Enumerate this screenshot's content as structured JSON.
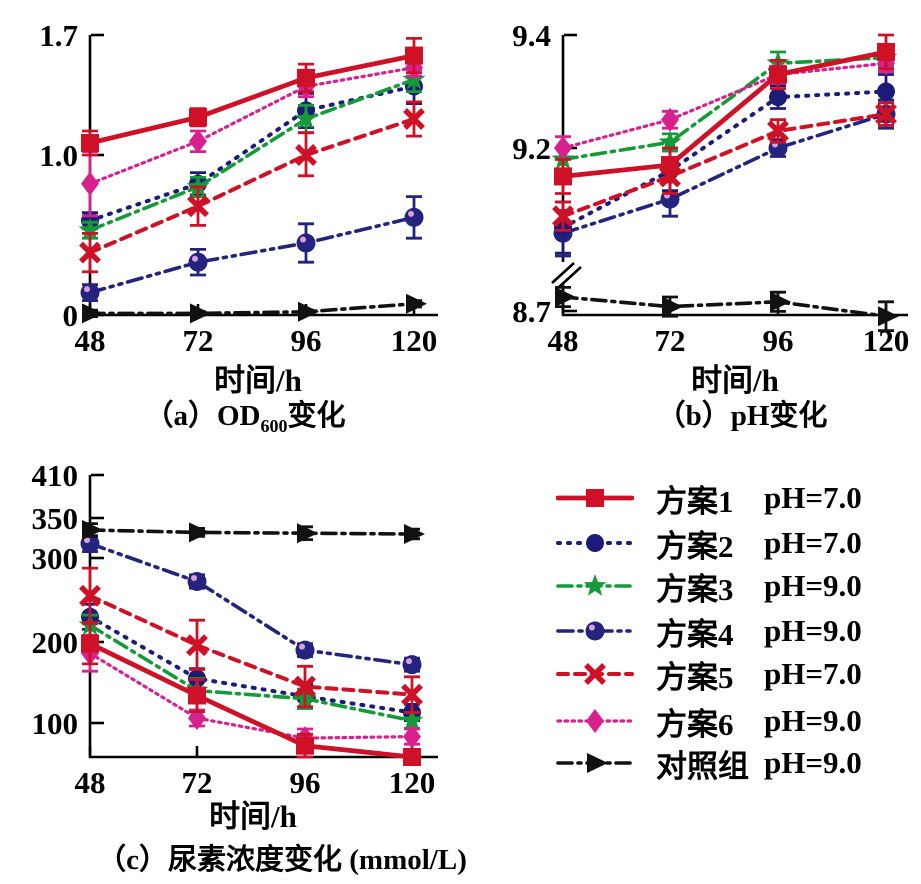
{
  "figure": {
    "captions": {
      "a": {
        "prefix": "（a）OD",
        "sub": "600",
        "suffix": "变化"
      },
      "b": {
        "text": "（b）pH变化"
      },
      "c": {
        "text": "（c）尿素浓度变化 (mmol/L)"
      }
    }
  },
  "legend": {
    "position": "bottom-right",
    "items": [
      {
        "label": "方案1",
        "ph": "pH=7.0",
        "color": "#ce1126",
        "marker": "square",
        "line": "solid"
      },
      {
        "label": "方案2",
        "ph": "pH=7.0",
        "color": "#1c1c78",
        "marker": "circle",
        "line": "dot"
      },
      {
        "label": "方案3",
        "ph": "pH=9.0",
        "color": "#149b38",
        "marker": "star",
        "line": "dashdot"
      },
      {
        "label": "方案4",
        "ph": "pH=9.0",
        "color": "#24247e",
        "marker": "sphere",
        "line": "dashdotdot"
      },
      {
        "label": "方案5",
        "ph": "pH=7.0",
        "color": "#ce1126",
        "marker": "x",
        "line": "dash"
      },
      {
        "label": "方案6",
        "ph": "pH=9.0",
        "color": "#d6218f",
        "marker": "diamond",
        "line": "finedot"
      },
      {
        "label": "对照组",
        "ph": "pH=9.0",
        "color": "#111111",
        "marker": "triangle-right",
        "line": "dashdot"
      }
    ]
  },
  "chart_data": [
    {
      "id": "a",
      "type": "line",
      "title": "（a）OD600变化",
      "xlabel": "时间/h",
      "x": [
        48,
        72,
        96,
        120
      ],
      "xtick_labels": [
        "48",
        "72",
        "96",
        "120"
      ],
      "ylim": [
        0,
        1.7
      ],
      "yticks": [
        {
          "v": 0,
          "label": "0"
        },
        {
          "v": 1.0,
          "label": "1.0"
        },
        {
          "v": 1.7,
          "label": "1.7"
        }
      ],
      "error_bars": true,
      "series": [
        {
          "name": "方案1",
          "values": [
            1.07,
            1.22,
            1.45,
            1.58
          ],
          "err": [
            0.07,
            0.05,
            0.08,
            0.1
          ]
        },
        {
          "name": "方案2",
          "values": [
            0.59,
            0.82,
            1.26,
            1.4
          ],
          "err": [
            0.05,
            0.07,
            0.1,
            0.1
          ]
        },
        {
          "name": "方案3",
          "values": [
            0.53,
            0.8,
            1.21,
            1.44
          ],
          "err": [
            0.05,
            0.06,
            0.08,
            0.07
          ]
        },
        {
          "name": "方案4",
          "values": [
            0.14,
            0.33,
            0.45,
            0.61
          ],
          "err": [
            0.05,
            0.08,
            0.12,
            0.13
          ]
        },
        {
          "name": "方案5",
          "values": [
            0.39,
            0.68,
            1.0,
            1.21
          ],
          "err": [
            0.12,
            0.12,
            0.13,
            0.1
          ]
        },
        {
          "name": "方案6",
          "values": [
            0.82,
            1.08,
            1.4,
            1.51
          ],
          "err": [
            0.2,
            0.06,
            0.06,
            0.05
          ]
        },
        {
          "name": "对照组",
          "values": [
            0.01,
            0.01,
            0.02,
            0.07
          ],
          "err": [
            0.02,
            0.01,
            0.01,
            0.02
          ]
        }
      ]
    },
    {
      "id": "b",
      "type": "line",
      "title": "（b）pH变化",
      "xlabel": "时间/h",
      "x": [
        48,
        72,
        96,
        120
      ],
      "xtick_labels": [
        "48",
        "72",
        "96",
        "120"
      ],
      "ylim": [
        8.7,
        9.4
      ],
      "axis_break": true,
      "yticks": [
        {
          "v": 8.7,
          "label": "8.7"
        },
        {
          "v": 9.2,
          "label": "9.2"
        },
        {
          "v": 9.4,
          "label": "9.4"
        }
      ],
      "error_bars": true,
      "series": [
        {
          "name": "方案1",
          "values": [
            9.15,
            9.17,
            9.33,
            9.37
          ],
          "err": [
            0.03,
            0.03,
            0.025,
            0.03
          ]
        },
        {
          "name": "方案2",
          "values": [
            9.06,
            9.16,
            9.29,
            9.3
          ],
          "err": [
            0.045,
            0.035,
            0.02,
            0.03
          ]
        },
        {
          "name": "方案3",
          "values": [
            9.18,
            9.21,
            9.35,
            9.36
          ],
          "err": [
            0.02,
            0.015,
            0.02,
            0.015
          ]
        },
        {
          "name": "方案4",
          "values": [
            9.05,
            9.11,
            9.2,
            9.26
          ],
          "err": [
            0.04,
            0.03,
            0.015,
            0.025
          ]
        },
        {
          "name": "方案5",
          "values": [
            9.08,
            9.15,
            9.23,
            9.26
          ],
          "err": [
            0.025,
            0.03,
            0.02,
            0.02
          ]
        },
        {
          "name": "方案6",
          "values": [
            9.2,
            9.25,
            9.33,
            9.35
          ],
          "err": [
            0.02,
            0.015,
            0.015,
            0.015
          ]
        },
        {
          "name": "对照组",
          "values": [
            8.73,
            8.71,
            8.72,
            8.69
          ],
          "err": [
            0.02,
            0.02,
            0.02,
            0.03
          ]
        }
      ]
    },
    {
      "id": "c",
      "type": "line",
      "title": "（c）尿素浓度变化 (mmol/L)",
      "xlabel": "时间/h",
      "x": [
        48,
        72,
        96,
        120
      ],
      "xtick_labels": [
        "48",
        "72",
        "96",
        "120"
      ],
      "ylim": [
        55,
        410
      ],
      "yticks": [
        {
          "v": 100,
          "label": "100"
        },
        {
          "v": 200,
          "label": "200"
        },
        {
          "v": 300,
          "label": "300"
        },
        {
          "v": 350,
          "label": "350"
        },
        {
          "v": 410,
          "label": "410"
        }
      ],
      "error_bars": true,
      "series": [
        {
          "name": "方案1",
          "values": [
            198,
            134,
            70,
            55
          ],
          "err": [
            25,
            20,
            15,
            10
          ]
        },
        {
          "name": "方案2",
          "values": [
            230,
            155,
            133,
            113
          ],
          "err": [
            15,
            12,
            15,
            10
          ]
        },
        {
          "name": "方案3",
          "values": [
            220,
            140,
            130,
            103
          ],
          "err": [
            12,
            15,
            12,
            10
          ]
        },
        {
          "name": "方案4",
          "values": [
            318,
            272,
            190,
            172
          ],
          "err": [
            10,
            8,
            8,
            8
          ]
        },
        {
          "name": "方案5",
          "values": [
            255,
            196,
            145,
            135
          ],
          "err": [
            33,
            30,
            25,
            22
          ]
        },
        {
          "name": "方案6",
          "values": [
            186,
            106,
            80,
            82
          ],
          "err": [
            22,
            10,
            12,
            10
          ]
        },
        {
          "name": "对照组",
          "values": [
            335,
            332,
            331,
            330
          ],
          "err": [
            8,
            5,
            8,
            6
          ]
        }
      ]
    }
  ]
}
